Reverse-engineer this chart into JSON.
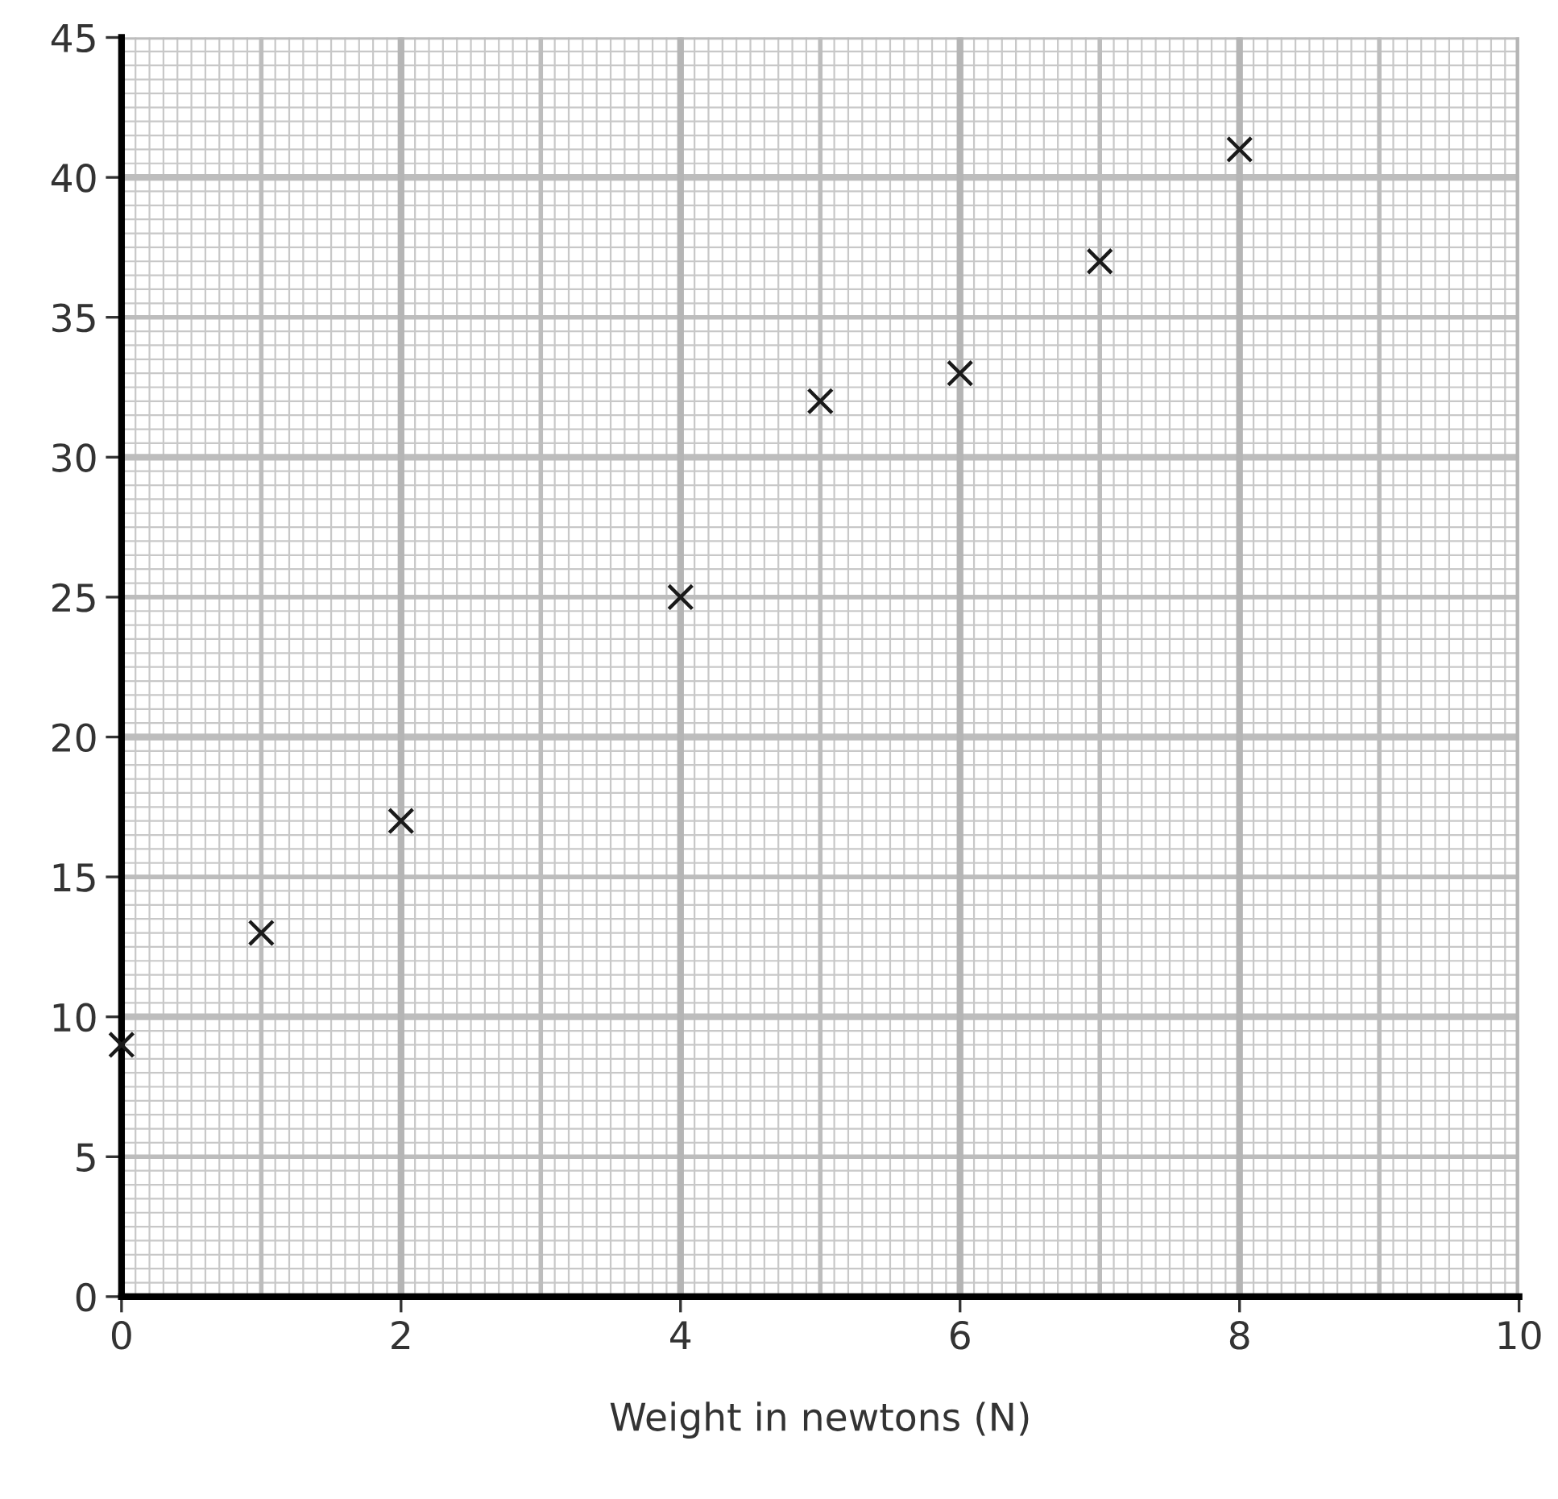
{
  "chart_data": {
    "type": "scatter",
    "xlabel": "Weight in newtons (N)",
    "x": [
      0,
      1,
      2,
      4,
      5,
      6,
      7,
      8
    ],
    "series": [
      {
        "color": "#1a1a1a",
        "values": [
          9,
          13,
          17,
          25,
          32,
          33,
          37,
          41
        ]
      }
    ],
    "xlim": [
      0,
      10
    ],
    "ylim": [
      0,
      45
    ],
    "xticks": [
      0,
      2,
      4,
      6,
      8,
      10
    ],
    "yticks": [
      0,
      5,
      10,
      15,
      20,
      25,
      30,
      35,
      40,
      45
    ],
    "grid": true,
    "marker": "cross"
  }
}
